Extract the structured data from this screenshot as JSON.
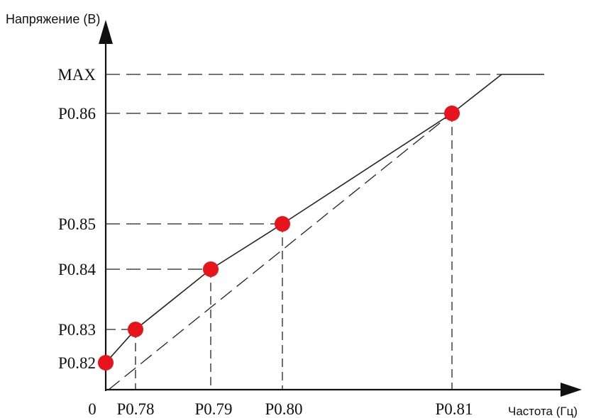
{
  "axes": {
    "y_label": "Напряжение  (В)",
    "x_label": "Частота (Гц)",
    "origin_label": "0"
  },
  "y_ticks": [
    "MAX",
    "P0.86",
    "P0.85",
    "P0.84",
    "P0.83",
    "P0.82"
  ],
  "x_ticks": [
    "P0.78",
    "P0.79",
    "P0.80",
    "P0.81"
  ],
  "chart_data": {
    "type": "line",
    "xlabel": "Частота (Гц)",
    "ylabel": "Напряжение  (В)",
    "series": [
      {
        "points": [
          {
            "x": "0",
            "y": "P0.82"
          },
          {
            "x": "P0.78",
            "y": "P0.83"
          },
          {
            "x": "P0.79",
            "y": "P0.84"
          },
          {
            "x": "P0.80",
            "y": "P0.85"
          },
          {
            "x": "P0.81",
            "y": "P0.86"
          }
        ]
      }
    ],
    "colors": {
      "line": "#222222",
      "point": "#e8141c",
      "axis": "#111111"
    }
  }
}
